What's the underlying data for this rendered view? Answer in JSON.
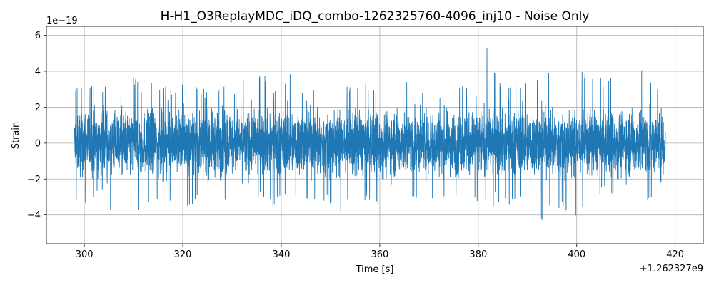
{
  "chart_data": {
    "type": "line",
    "title": "H-H1_O3ReplayMDC_iDQ_combo-1262325760-4096_inj10 - Noise Only",
    "xlabel": "Time [s]",
    "ylabel": "Strain",
    "x_offset_label": "+1.262327e9",
    "y_scale_label": "1e−19",
    "xlim": [
      292.3,
      425.7
    ],
    "ylim": [
      -5.6,
      6.5
    ],
    "x_ticks": [
      300,
      320,
      340,
      360,
      380,
      400,
      420
    ],
    "x_tick_labels": [
      "300",
      "320",
      "340",
      "360",
      "380",
      "400",
      "420"
    ],
    "y_ticks": [
      -4,
      -2,
      0,
      2,
      4,
      6
    ],
    "y_tick_labels": [
      "−4",
      "−2",
      "0",
      "2",
      "4",
      "6"
    ],
    "grid": true,
    "series": [
      {
        "color": "#1f77b4",
        "x_range": [
          298.0,
          418.0
        ],
        "envelope": {
          "x": [
            298,
            300,
            302,
            304,
            305,
            306,
            308,
            310,
            312,
            314,
            316,
            318,
            320,
            322,
            324,
            326,
            328,
            330,
            332,
            334,
            336,
            338,
            340,
            342,
            344,
            346,
            348,
            350,
            352,
            354,
            356,
            358,
            360,
            362,
            364,
            366,
            368,
            370,
            372,
            374,
            376,
            378,
            380,
            382,
            384,
            386,
            388,
            390,
            392,
            393,
            394,
            396,
            398,
            400,
            402,
            404,
            406,
            408,
            409,
            410,
            412,
            414,
            416,
            418
          ],
          "upper": [
            3.4,
            2.9,
            3.6,
            3.0,
            4.1,
            3.3,
            2.8,
            3.7,
            3.0,
            3.5,
            3.2,
            2.9,
            3.4,
            3.5,
            3.0,
            3.4,
            3.2,
            3.0,
            3.6,
            3.3,
            4.2,
            3.1,
            3.5,
            4.2,
            3.2,
            3.4,
            3.0,
            3.2,
            3.6,
            3.1,
            3.3,
            3.4,
            3.0,
            3.4,
            3.2,
            3.5,
            3.0,
            3.3,
            2.9,
            3.0,
            3.4,
            3.3,
            3.2,
            5.9,
            3.4,
            3.5,
            3.5,
            3.6,
            4.1,
            4.8,
            4.4,
            4.5,
            3.8,
            4.6,
            3.7,
            3.8,
            3.5,
            4.7,
            3.6,
            3.2,
            3.6,
            4.4,
            3.5,
            2.7
          ],
          "lower": [
            -3.2,
            -4.0,
            -3.0,
            -2.8,
            -4.0,
            -3.5,
            -3.3,
            -4.5,
            -3.2,
            -3.6,
            -3.4,
            -3.7,
            -4.6,
            -3.4,
            -3.0,
            -3.3,
            -3.6,
            -3.2,
            -3.5,
            -3.0,
            -3.2,
            -3.6,
            -3.1,
            -3.4,
            -3.3,
            -3.7,
            -3.2,
            -3.4,
            -4.3,
            -3.3,
            -3.1,
            -3.6,
            -3.4,
            -3.6,
            -3.3,
            -3.0,
            -3.2,
            -3.7,
            -3.3,
            -3.4,
            -3.3,
            -3.5,
            -3.2,
            -3.8,
            -3.6,
            -3.5,
            -3.3,
            -3.6,
            -4.1,
            -5.0,
            -4.0,
            -3.6,
            -4.0,
            -4.6,
            -3.6,
            -3.2,
            -2.6,
            -3.3,
            -3.5,
            -3.0,
            -3.2,
            -3.3,
            -3.0,
            -2.6
          ]
        }
      }
    ]
  }
}
